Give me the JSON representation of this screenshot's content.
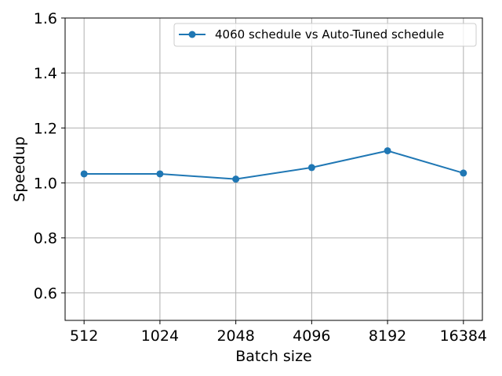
{
  "chart_data": {
    "type": "line",
    "title": "",
    "xlabel": "Batch size",
    "ylabel": "Speedup",
    "categories": [
      "512",
      "1024",
      "2048",
      "4096",
      "8192",
      "16384"
    ],
    "series": [
      {
        "name": "4060 schedule vs Auto-Tuned schedule",
        "color": "#1f77b4",
        "marker": "circle",
        "values": [
          1.033,
          1.033,
          1.014,
          1.056,
          1.117,
          1.036
        ]
      }
    ],
    "ylim": [
      0.5,
      1.6
    ],
    "yticks": [
      0.6,
      0.8,
      1.0,
      1.2,
      1.4,
      1.6
    ],
    "ytick_labels": [
      "0.6",
      "0.8",
      "1.0",
      "1.2",
      "1.4",
      "1.6"
    ],
    "grid": true,
    "legend_position": "top-right"
  },
  "colors": {
    "grid": "#b0b0b0",
    "axes": "#000000",
    "series": "#1f77b4"
  }
}
